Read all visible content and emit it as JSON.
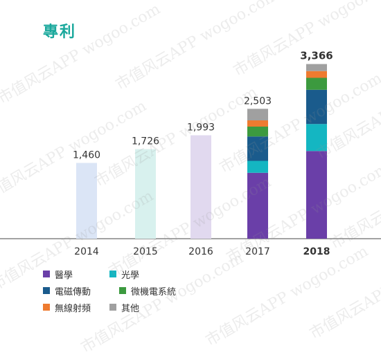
{
  "title": "專利",
  "chart_data": {
    "type": "bar",
    "categories": [
      "2014",
      "2015",
      "2016",
      "2017",
      "2018"
    ],
    "totals": [
      1460,
      1726,
      1993,
      2503,
      3366
    ],
    "total_labels": [
      "1,460",
      "1,726",
      "1,993",
      "2,503",
      "3,366"
    ],
    "bold_category": "2018",
    "ylim": [
      0,
      3600
    ],
    "plain_colors": [
      "#dbe5f6",
      "#d8f1ee",
      "#e1d9ef"
    ],
    "series": [
      {
        "name": "醫學",
        "color": "#6a3fa8",
        "values": [
          null,
          null,
          null,
          1270,
          1690
        ]
      },
      {
        "name": "光學",
        "color": "#14b6c2",
        "values": [
          null,
          null,
          null,
          230,
          520
        ]
      },
      {
        "name": "電磁傳動",
        "color": "#1a5b8c",
        "values": [
          null,
          null,
          null,
          470,
          660
        ]
      },
      {
        "name": "微機電系統",
        "color": "#3c9a3f",
        "values": [
          null,
          null,
          null,
          190,
          230
        ]
      },
      {
        "name": "無線射頻",
        "color": "#ee7b30",
        "values": [
          null,
          null,
          null,
          120,
          130
        ]
      },
      {
        "name": "其他",
        "color": "#a0a0a0",
        "values": [
          null,
          null,
          null,
          223,
          136
        ]
      }
    ]
  },
  "watermark": "市值风云APP wogoo.com"
}
